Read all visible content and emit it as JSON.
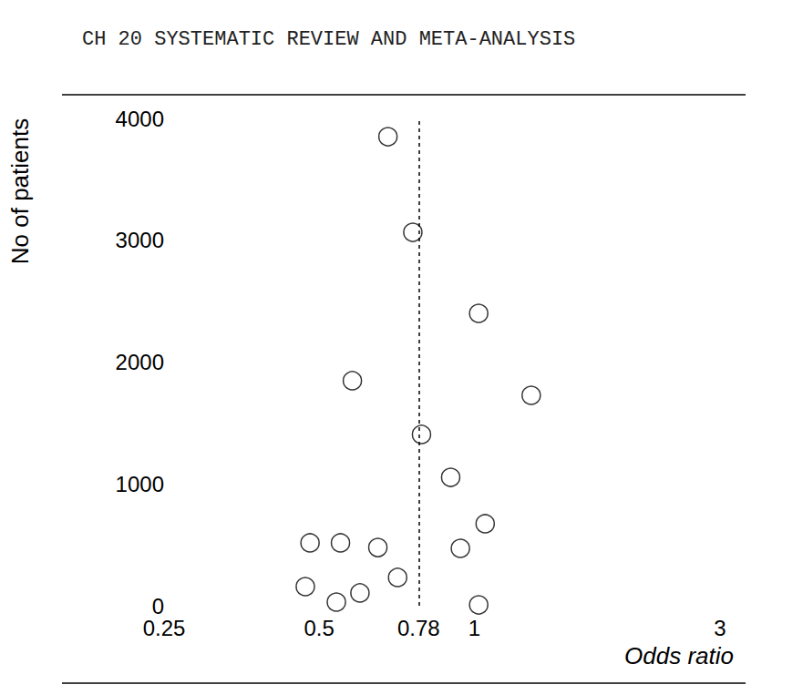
{
  "chart_data": {
    "type": "scatter",
    "title": "CH 20 SYSTEMATIC REVIEW AND META-ANALYSIS",
    "x_label": "Odds ratio",
    "y_label": "No of patients",
    "x": [
      0.68,
      0.76,
      1.02,
      0.58,
      1.29,
      0.79,
      0.9,
      1.05,
      0.48,
      0.55,
      0.65,
      0.94,
      0.71,
      0.47,
      0.6,
      0.54,
      1.02
    ],
    "values": [
      3850,
      3065,
      2400,
      1847,
      1727,
      1406,
      1054,
      673,
      516,
      516,
      478,
      471,
      232,
      157,
      105,
      30,
      7
    ],
    "vline": 0.78,
    "log": "x",
    "xlim": [
      0.25,
      3
    ],
    "xticks": [
      0.25,
      0.5,
      0.78,
      1,
      3
    ],
    "ylim": [
      0,
      4000
    ],
    "yticks": [
      0,
      1000,
      2000,
      3000,
      4000
    ],
    "grid": false,
    "marker": "circle",
    "color": "#000000"
  }
}
